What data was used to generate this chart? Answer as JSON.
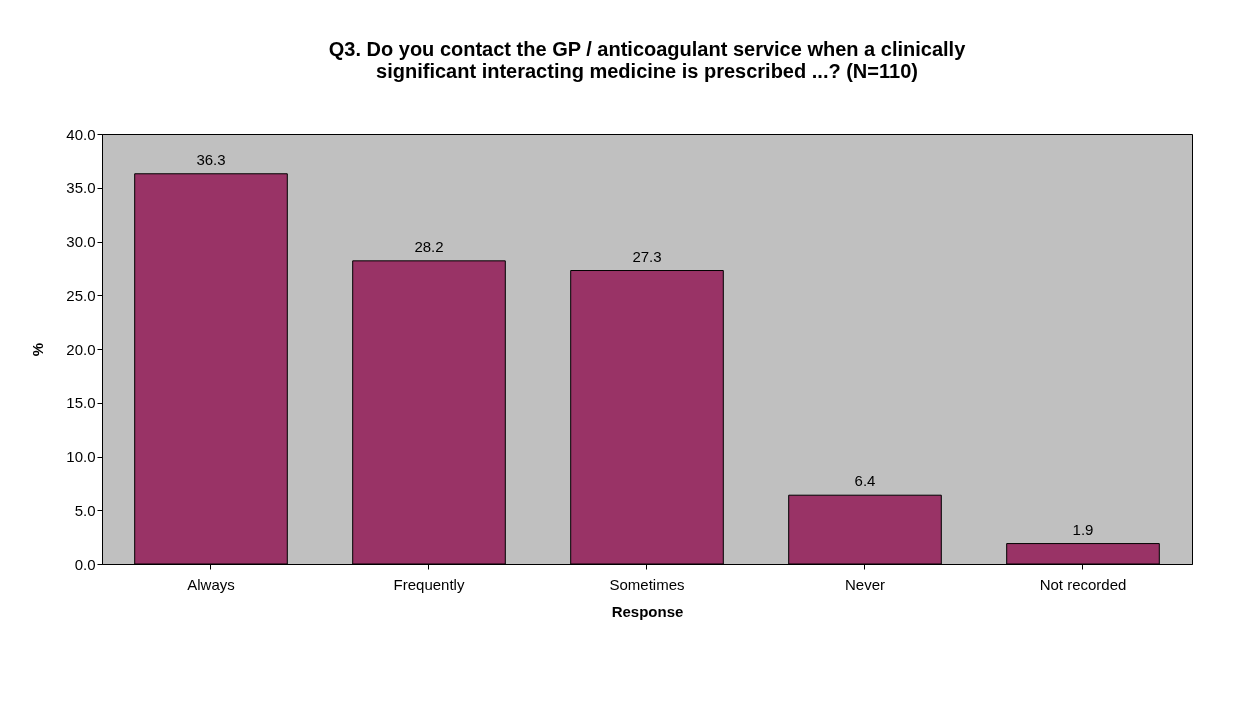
{
  "chart_data": {
    "type": "bar",
    "title": "Q3. Do you contact the GP / anticoagulant service when a clinically\nsignificant interacting medicine is prescribed ...? (N=110)",
    "xlabel": "Response",
    "ylabel": "%",
    "categories": [
      "Always",
      "Frequently",
      "Sometimes",
      "Never",
      "Not recorded"
    ],
    "values": [
      36.3,
      28.2,
      27.3,
      6.4,
      1.9
    ],
    "color": "#993366",
    "ylim": [
      0,
      40
    ],
    "yticks": [
      {
        "value": 0,
        "label": "0.0"
      },
      {
        "value": 5,
        "label": "5.0"
      },
      {
        "value": 10,
        "label": "10.0"
      },
      {
        "value": 15,
        "label": "15.0"
      },
      {
        "value": 20,
        "label": "20.0"
      },
      {
        "value": 25,
        "label": "25.0"
      },
      {
        "value": 30,
        "label": "30.0"
      },
      {
        "value": 35,
        "label": "35.0"
      },
      {
        "value": 40,
        "label": "40.0"
      }
    ],
    "data_labels": true,
    "grid": false
  }
}
